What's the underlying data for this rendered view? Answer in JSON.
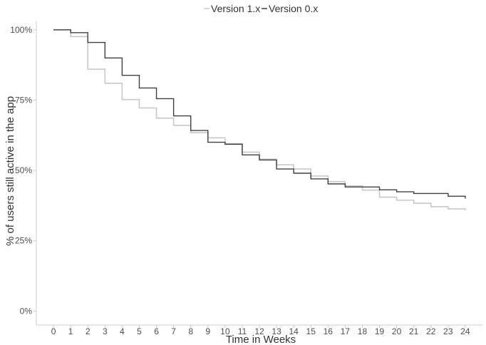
{
  "chart_data": {
    "type": "line",
    "step": true,
    "title": "",
    "xlabel": "Time in Weeks",
    "ylabel": "% of users still active in the app",
    "xlim": [
      -1,
      25
    ],
    "ylim": [
      -0.05,
      1.03
    ],
    "x_ticks": [
      "0",
      "1",
      "2",
      "3",
      "4",
      "5",
      "6",
      "7",
      "8",
      "9",
      "10",
      "11",
      "12",
      "13",
      "14",
      "15",
      "16",
      "17",
      "18",
      "19",
      "20",
      "21",
      "22",
      "23",
      "24"
    ],
    "y_ticks": [
      {
        "value": 0,
        "label": "0%"
      },
      {
        "value": 0.25,
        "label": "25%"
      },
      {
        "value": 0.5,
        "label": "50%"
      },
      {
        "value": 0.75,
        "label": "75%"
      },
      {
        "value": 1,
        "label": "100%"
      }
    ],
    "grid": false,
    "legend_position": "top",
    "series": [
      {
        "name": "Version 1.x",
        "color": "#c8c8c8",
        "x": [
          0,
          1,
          2,
          3,
          4,
          5,
          6,
          7,
          8,
          9,
          10,
          11,
          12,
          13,
          14,
          15,
          16,
          17,
          18,
          19,
          20,
          21,
          22,
          23,
          24
        ],
        "values": [
          1.0,
          0.976,
          0.86,
          0.81,
          0.752,
          0.722,
          0.686,
          0.66,
          0.634,
          0.616,
          0.595,
          0.565,
          0.54,
          0.52,
          0.505,
          0.48,
          0.46,
          0.445,
          0.43,
          0.405,
          0.394,
          0.383,
          0.371,
          0.363,
          0.358
        ]
      },
      {
        "name": "Version 0.x",
        "color": "#404040",
        "x": [
          0,
          1,
          2,
          3,
          4,
          5,
          6,
          7,
          8,
          9,
          10,
          11,
          12,
          13,
          14,
          15,
          16,
          17,
          18,
          19,
          20,
          21,
          22,
          23,
          24
        ],
        "values": [
          1.0,
          0.99,
          0.955,
          0.9,
          0.838,
          0.793,
          0.755,
          0.694,
          0.642,
          0.6,
          0.593,
          0.555,
          0.537,
          0.505,
          0.49,
          0.47,
          0.452,
          0.441,
          0.441,
          0.431,
          0.424,
          0.418,
          0.418,
          0.408,
          0.4
        ]
      }
    ]
  }
}
